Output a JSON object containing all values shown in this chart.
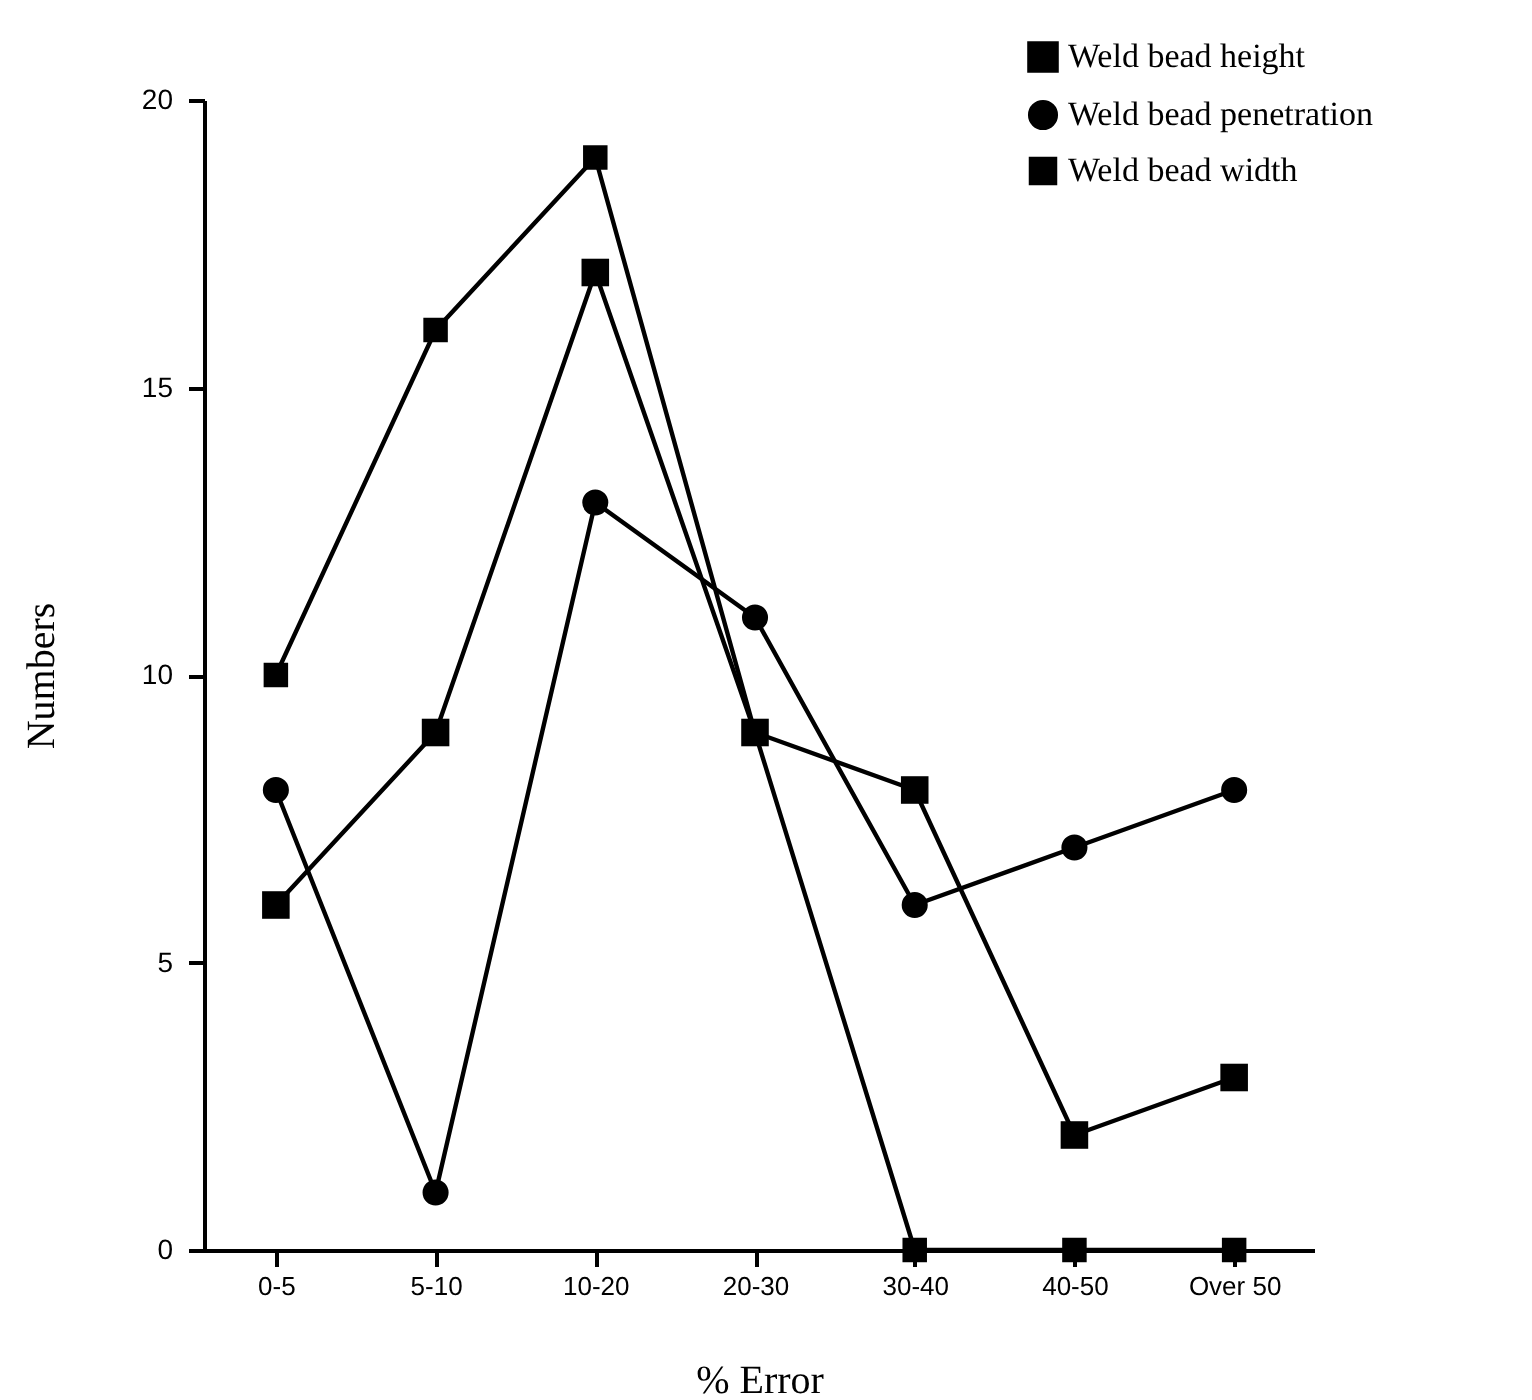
{
  "chart_data": {
    "type": "line",
    "xlabel": "% Error",
    "ylabel": "Numbers",
    "categories": [
      "0-5",
      "5-10",
      "10-20",
      "20-30",
      "30-40",
      "40-50",
      "Over 50"
    ],
    "series": [
      {
        "name": "Weld bead height",
        "color": "#000000",
        "marker": "square",
        "values": [
          6,
          9,
          17,
          9,
          8,
          2,
          3
        ]
      },
      {
        "name": "Weld bead penetration",
        "color": "#000000",
        "marker": "circle",
        "values": [
          8,
          1,
          13,
          11,
          6,
          7,
          8
        ]
      },
      {
        "name": "Weld bead width",
        "color": "#000000",
        "marker": "square",
        "values": [
          10,
          16,
          19,
          9,
          0,
          0,
          0
        ]
      }
    ],
    "ylim": [
      0,
      20
    ],
    "yticks": [
      0,
      5,
      10,
      15,
      20
    ],
    "grid": false,
    "legend": "top right",
    "line_style": "solid"
  }
}
